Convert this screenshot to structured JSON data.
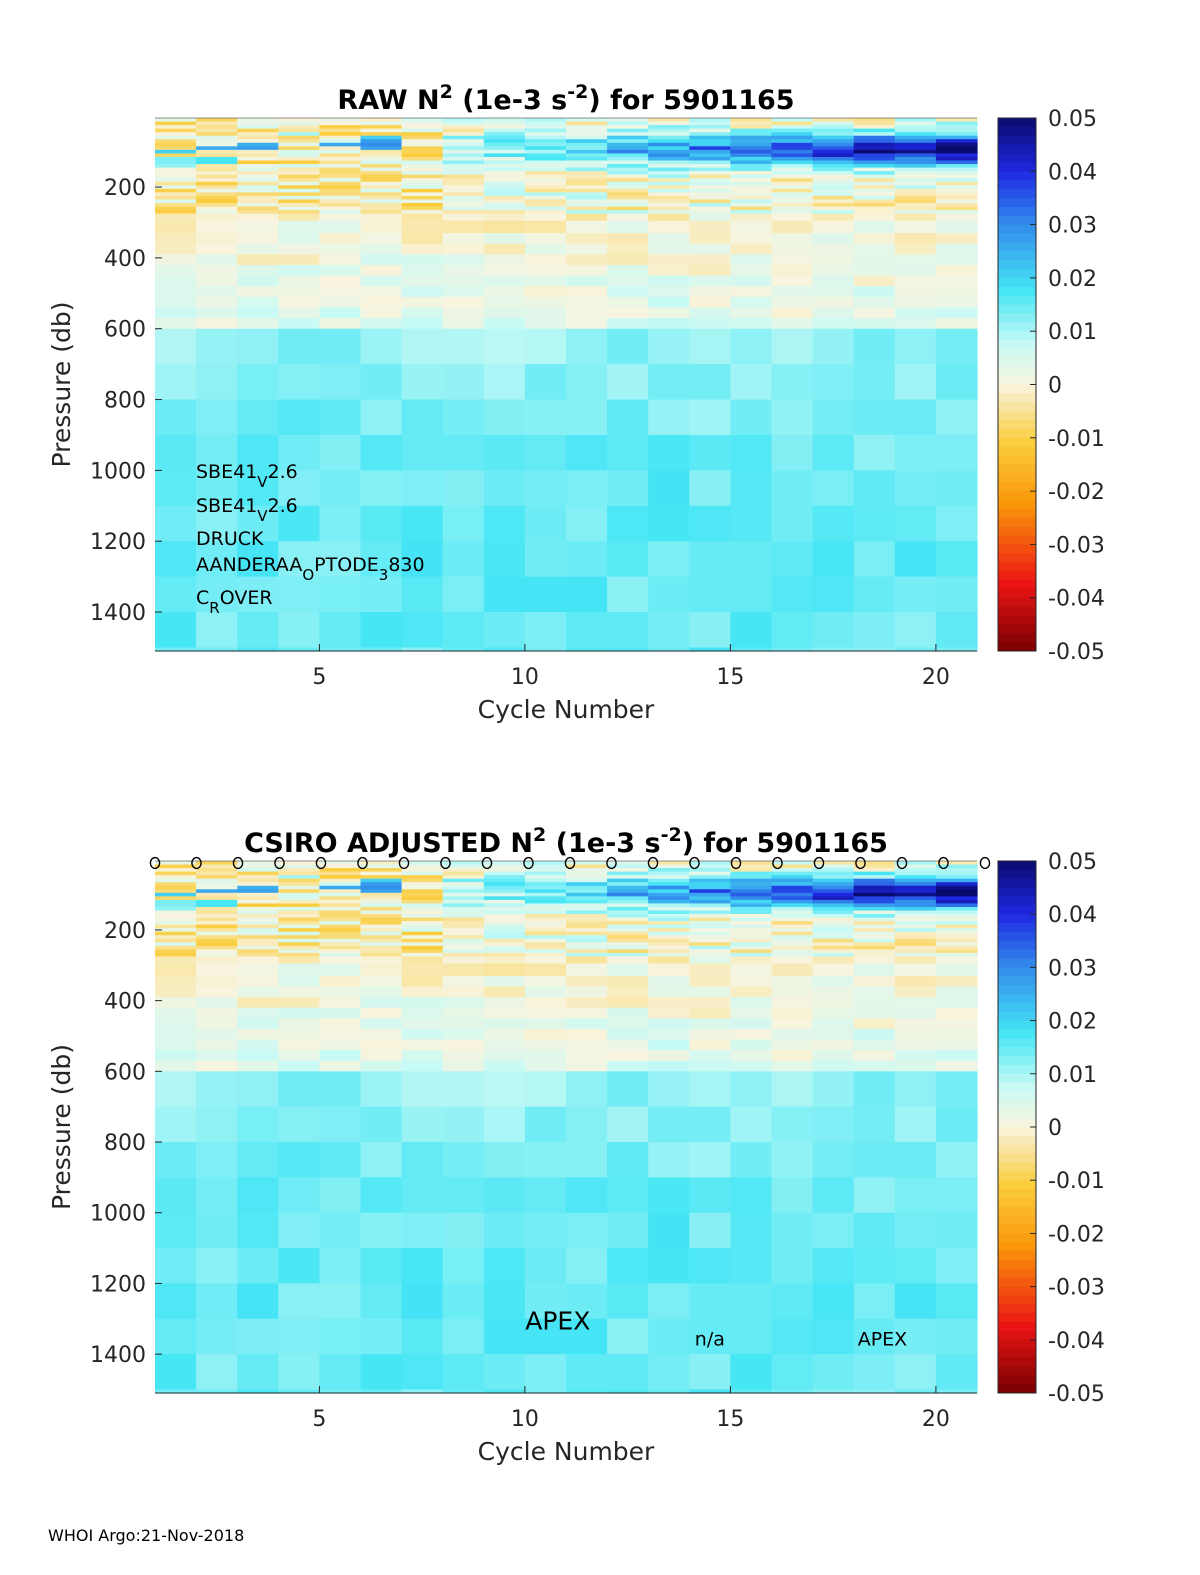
{
  "footer": "WHOI Argo:21-Nov-2018",
  "chart_data": [
    {
      "type": "heatmap",
      "title": {
        "pre": "RAW N",
        "sup1": "2",
        "mid": " (1e-3 s",
        "sup2": "-2",
        "post": ") for 5901165"
      },
      "xlabel": "Cycle Number",
      "ylabel": "Pressure (db)",
      "xlim": [
        1,
        21
      ],
      "ylim": [
        1510,
        5
      ],
      "xticks": [
        "5",
        "10",
        "15",
        "20"
      ],
      "yticks": [
        "200",
        "400",
        "600",
        "800",
        "1000",
        "1200",
        "1400"
      ],
      "colorbar": {
        "range": [
          -0.05,
          0.05
        ],
        "ticks": [
          "0.05",
          "0.04",
          "0.03",
          "0.02",
          "0.01",
          "0",
          "-0.01",
          "-0.02",
          "-0.03",
          "-0.04",
          "-0.05"
        ]
      },
      "annotations": [
        {
          "base": "SBE41",
          "sub": "V",
          "after": "2.6",
          "sub2": "",
          "after2": ""
        },
        {
          "base": "SBE41",
          "sub": "V",
          "after": "2.6",
          "sub2": "",
          "after2": ""
        },
        {
          "base": "DRUCK",
          "sub": "",
          "after": "",
          "sub2": "",
          "after2": ""
        },
        {
          "base": "AANDERAA",
          "sub": "O",
          "after": "PTODE",
          "sub2": "3",
          "after2": "830"
        },
        {
          "base": "C",
          "sub": "R",
          "after": "OVER",
          "sub2": "",
          "after2": ""
        }
      ]
    },
    {
      "type": "heatmap",
      "title": {
        "pre": "CSIRO  ADJUSTED N",
        "sup1": "2",
        "mid": " (1e-3 s",
        "sup2": "-2",
        "post": ") for 5901165"
      },
      "xlabel": "Cycle Number",
      "ylabel": "Pressure (db)",
      "xlim": [
        1,
        21
      ],
      "ylim": [
        1510,
        5
      ],
      "xticks": [
        "5",
        "10",
        "15",
        "20"
      ],
      "yticks": [
        "200",
        "400",
        "600",
        "800",
        "1000",
        "1200",
        "1400"
      ],
      "colorbar": {
        "range": [
          -0.05,
          0.05
        ],
        "ticks": [
          "0.05",
          "0.04",
          "0.03",
          "0.02",
          "0.01",
          "0",
          "-0.01",
          "-0.02",
          "-0.03",
          "-0.04",
          "-0.05"
        ]
      },
      "markers": {
        "symbol": "o",
        "cycles": [
          1,
          2,
          3,
          4,
          5,
          6,
          7,
          8,
          9,
          10,
          11,
          12,
          13,
          14,
          15,
          16,
          17,
          18,
          19,
          20,
          21
        ]
      },
      "text_labels": [
        {
          "text": "APEX",
          "cycle": 10.8,
          "pressure": 1330,
          "size": "large"
        },
        {
          "text": "n/a",
          "cycle": 14.5,
          "pressure": 1375,
          "size": "small"
        },
        {
          "text": "APEX",
          "cycle": 18.7,
          "pressure": 1375,
          "size": "small"
        }
      ]
    }
  ]
}
